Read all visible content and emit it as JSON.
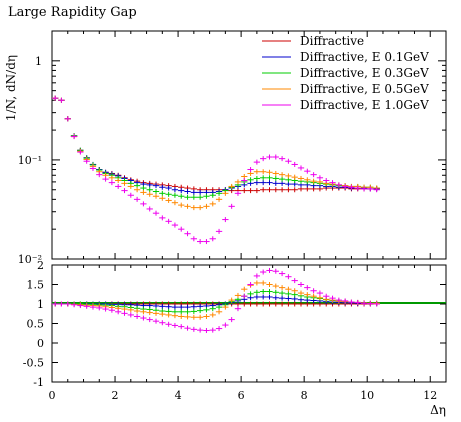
{
  "title": "Large Rapidity Gap",
  "chart_data": {
    "type": "scatter",
    "title": "Large Rapidity Gap",
    "xlabel": "Δη",
    "ylabel": "1/N, dN/dη",
    "ratio_ylabel": "",
    "xlim": [
      0,
      12.5
    ],
    "ylim": [
      0.01,
      2
    ],
    "yscale": "log",
    "ratio_ylim": [
      -1,
      2
    ],
    "x_ticks": [
      "0",
      "2",
      "4",
      "6",
      "8",
      "10",
      "12"
    ],
    "y_ticks": [
      "1",
      "10⁻¹",
      "10⁻²"
    ],
    "ratio_y_ticks": [
      "2",
      "1.5",
      "1",
      "0.5",
      "0",
      "-0.5",
      "-1"
    ],
    "legend_position": "top-right",
    "grid": false,
    "x": [
      0.1,
      0.3,
      0.5,
      0.7,
      0.9,
      1.1,
      1.3,
      1.5,
      1.7,
      1.9,
      2.1,
      2.3,
      2.5,
      2.7,
      2.9,
      3.1,
      3.3,
      3.5,
      3.7,
      3.9,
      4.1,
      4.3,
      4.5,
      4.7,
      4.9,
      5.1,
      5.3,
      5.5,
      5.7,
      5.9,
      6.1,
      6.3,
      6.5,
      6.7,
      6.9,
      7.1,
      7.3,
      7.5,
      7.7,
      7.9,
      8.1,
      8.3,
      8.5,
      8.7,
      8.9,
      9.1,
      9.3,
      9.5,
      9.7,
      9.9,
      10.1,
      10.3
    ],
    "series": [
      {
        "name": "Diffractive",
        "color": "#cc0000",
        "values": [
          0.42,
          0.4,
          0.26,
          0.175,
          0.125,
          0.105,
          0.09,
          0.08,
          0.075,
          0.073,
          0.07,
          0.066,
          0.063,
          0.061,
          0.059,
          0.058,
          0.057,
          0.056,
          0.055,
          0.054,
          0.053,
          0.052,
          0.051,
          0.05,
          0.05,
          0.05,
          0.05,
          0.05,
          0.049,
          0.049,
          0.049,
          0.049,
          0.049,
          0.05,
          0.05,
          0.05,
          0.05,
          0.05,
          0.05,
          0.051,
          0.051,
          0.051,
          0.051,
          0.052,
          0.052,
          0.052,
          0.052,
          0.051,
          0.051,
          0.051,
          0.051,
          0.051
        ],
        "ratio": [
          1,
          1,
          1,
          1,
          1,
          1,
          1,
          1,
          1,
          1,
          1,
          1,
          1,
          1,
          1,
          1,
          1,
          1,
          1,
          1,
          1,
          1,
          1,
          1,
          1,
          1,
          1,
          1,
          1,
          1,
          1,
          1,
          1,
          1,
          1,
          1,
          1,
          1,
          1,
          1,
          1,
          1,
          1,
          1,
          1,
          1,
          1,
          1,
          1,
          1,
          1,
          1
        ]
      },
      {
        "name": "Diffractive, E 0.1GeV",
        "color": "#0000cc",
        "values": [
          0.42,
          0.4,
          0.26,
          0.175,
          0.125,
          0.105,
          0.09,
          0.08,
          0.075,
          0.072,
          0.069,
          0.065,
          0.062,
          0.059,
          0.057,
          0.056,
          0.055,
          0.053,
          0.052,
          0.05,
          0.049,
          0.048,
          0.047,
          0.047,
          0.047,
          0.047,
          0.048,
          0.05,
          0.052,
          0.054,
          0.056,
          0.058,
          0.059,
          0.059,
          0.059,
          0.058,
          0.058,
          0.057,
          0.057,
          0.056,
          0.056,
          0.055,
          0.055,
          0.054,
          0.054,
          0.053,
          0.053,
          0.052,
          0.052,
          0.052,
          0.051,
          0.051
        ],
        "ratio": [
          1,
          1,
          1,
          1,
          1,
          1,
          1,
          1,
          1,
          0.99,
          0.99,
          0.98,
          0.98,
          0.97,
          0.96,
          0.96,
          0.95,
          0.94,
          0.93,
          0.92,
          0.92,
          0.92,
          0.93,
          0.94,
          0.95,
          0.96,
          0.98,
          1.0,
          1.04,
          1.08,
          1.12,
          1.16,
          1.18,
          1.18,
          1.18,
          1.16,
          1.15,
          1.14,
          1.13,
          1.11,
          1.1,
          1.09,
          1.08,
          1.06,
          1.05,
          1.04,
          1.03,
          1.03,
          1.02,
          1.02,
          1.01,
          1.01
        ]
      },
      {
        "name": "Diffractive, E 0.3GeV",
        "color": "#00cc00",
        "values": [
          0.42,
          0.4,
          0.26,
          0.175,
          0.125,
          0.104,
          0.089,
          0.079,
          0.073,
          0.07,
          0.066,
          0.062,
          0.058,
          0.055,
          0.052,
          0.05,
          0.048,
          0.046,
          0.045,
          0.044,
          0.043,
          0.042,
          0.042,
          0.042,
          0.043,
          0.044,
          0.046,
          0.049,
          0.053,
          0.056,
          0.06,
          0.063,
          0.065,
          0.066,
          0.066,
          0.065,
          0.064,
          0.063,
          0.062,
          0.061,
          0.06,
          0.059,
          0.058,
          0.057,
          0.056,
          0.055,
          0.055,
          0.054,
          0.054,
          0.053,
          0.053,
          0.052
        ],
        "ratio": [
          1,
          1,
          1,
          1,
          1,
          0.99,
          0.99,
          0.98,
          0.97,
          0.96,
          0.94,
          0.93,
          0.91,
          0.89,
          0.87,
          0.86,
          0.84,
          0.82,
          0.81,
          0.8,
          0.8,
          0.8,
          0.81,
          0.83,
          0.85,
          0.88,
          0.92,
          0.98,
          1.06,
          1.12,
          1.2,
          1.26,
          1.3,
          1.32,
          1.32,
          1.3,
          1.28,
          1.26,
          1.24,
          1.21,
          1.18,
          1.16,
          1.14,
          1.11,
          1.09,
          1.07,
          1.06,
          1.05,
          1.04,
          1.03,
          1.02,
          1.02
        ]
      },
      {
        "name": "Diffractive, E 0.5GeV",
        "color": "#ff8800",
        "values": [
          0.42,
          0.4,
          0.26,
          0.172,
          0.122,
          0.101,
          0.086,
          0.076,
          0.07,
          0.066,
          0.062,
          0.058,
          0.054,
          0.05,
          0.047,
          0.045,
          0.043,
          0.041,
          0.039,
          0.037,
          0.035,
          0.034,
          0.033,
          0.033,
          0.034,
          0.036,
          0.04,
          0.046,
          0.054,
          0.06,
          0.068,
          0.073,
          0.076,
          0.076,
          0.075,
          0.073,
          0.071,
          0.069,
          0.067,
          0.065,
          0.063,
          0.061,
          0.06,
          0.058,
          0.057,
          0.056,
          0.055,
          0.054,
          0.054,
          0.053,
          0.053,
          0.052
        ],
        "ratio": [
          1,
          1,
          1,
          0.99,
          0.98,
          0.97,
          0.96,
          0.95,
          0.93,
          0.91,
          0.89,
          0.87,
          0.85,
          0.82,
          0.8,
          0.78,
          0.76,
          0.74,
          0.72,
          0.7,
          0.68,
          0.67,
          0.66,
          0.66,
          0.68,
          0.72,
          0.8,
          0.92,
          1.1,
          1.22,
          1.38,
          1.48,
          1.54,
          1.54,
          1.5,
          1.46,
          1.42,
          1.38,
          1.34,
          1.28,
          1.24,
          1.2,
          1.16,
          1.12,
          1.1,
          1.07,
          1.06,
          1.05,
          1.04,
          1.03,
          1.02,
          1.02
        ]
      },
      {
        "name": "Diffractive, E 1.0GeV",
        "color": "#ee00ee",
        "values": [
          0.42,
          0.4,
          0.26,
          0.172,
          0.12,
          0.097,
          0.082,
          0.071,
          0.064,
          0.059,
          0.054,
          0.049,
          0.044,
          0.04,
          0.036,
          0.032,
          0.029,
          0.026,
          0.024,
          0.022,
          0.02,
          0.018,
          0.016,
          0.015,
          0.015,
          0.016,
          0.019,
          0.025,
          0.034,
          0.046,
          0.062,
          0.08,
          0.095,
          0.103,
          0.107,
          0.107,
          0.103,
          0.097,
          0.09,
          0.083,
          0.077,
          0.071,
          0.066,
          0.062,
          0.059,
          0.056,
          0.054,
          0.053,
          0.052,
          0.051,
          0.051,
          0.05
        ],
        "ratio": [
          1,
          1,
          1,
          0.98,
          0.96,
          0.94,
          0.92,
          0.9,
          0.87,
          0.84,
          0.8,
          0.76,
          0.72,
          0.68,
          0.64,
          0.6,
          0.56,
          0.52,
          0.48,
          0.45,
          0.42,
          0.38,
          0.35,
          0.33,
          0.32,
          0.33,
          0.37,
          0.46,
          0.6,
          0.88,
          1.2,
          1.5,
          1.72,
          1.82,
          1.86,
          1.84,
          1.78,
          1.7,
          1.6,
          1.5,
          1.42,
          1.34,
          1.28,
          1.2,
          1.15,
          1.1,
          1.08,
          1.05,
          1.04,
          1.02,
          1.01,
          1.0
        ]
      }
    ]
  }
}
